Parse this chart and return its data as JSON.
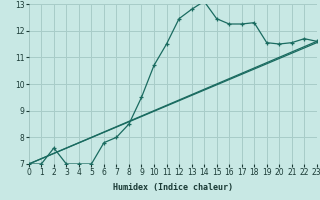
{
  "xlabel": "Humidex (Indice chaleur)",
  "xlim": [
    0,
    23
  ],
  "ylim": [
    7,
    13
  ],
  "xticks": [
    0,
    1,
    2,
    3,
    4,
    5,
    6,
    7,
    8,
    9,
    10,
    11,
    12,
    13,
    14,
    15,
    16,
    17,
    18,
    19,
    20,
    21,
    22,
    23
  ],
  "yticks": [
    7,
    8,
    9,
    10,
    11,
    12,
    13
  ],
  "bg_color": "#c8e8e4",
  "grid_color": "#a8ccc8",
  "line_color": "#1a6b60",
  "line1_x": [
    0,
    1,
    2,
    3,
    4,
    5,
    6,
    7,
    8,
    9,
    10,
    11,
    12,
    13,
    14,
    15,
    16,
    17,
    18,
    19,
    20,
    21,
    22,
    23
  ],
  "line1_y": [
    7.0,
    7.0,
    7.6,
    7.0,
    7.0,
    7.0,
    7.8,
    8.0,
    8.5,
    9.5,
    10.7,
    11.5,
    12.45,
    12.8,
    13.1,
    12.45,
    12.25,
    12.25,
    12.3,
    11.55,
    11.5,
    11.55,
    11.7,
    11.6
  ],
  "line2_x": [
    0,
    23
  ],
  "line2_y": [
    7.0,
    11.6
  ],
  "line3_x": [
    0,
    23
  ],
  "line3_y": [
    7.0,
    11.55
  ]
}
